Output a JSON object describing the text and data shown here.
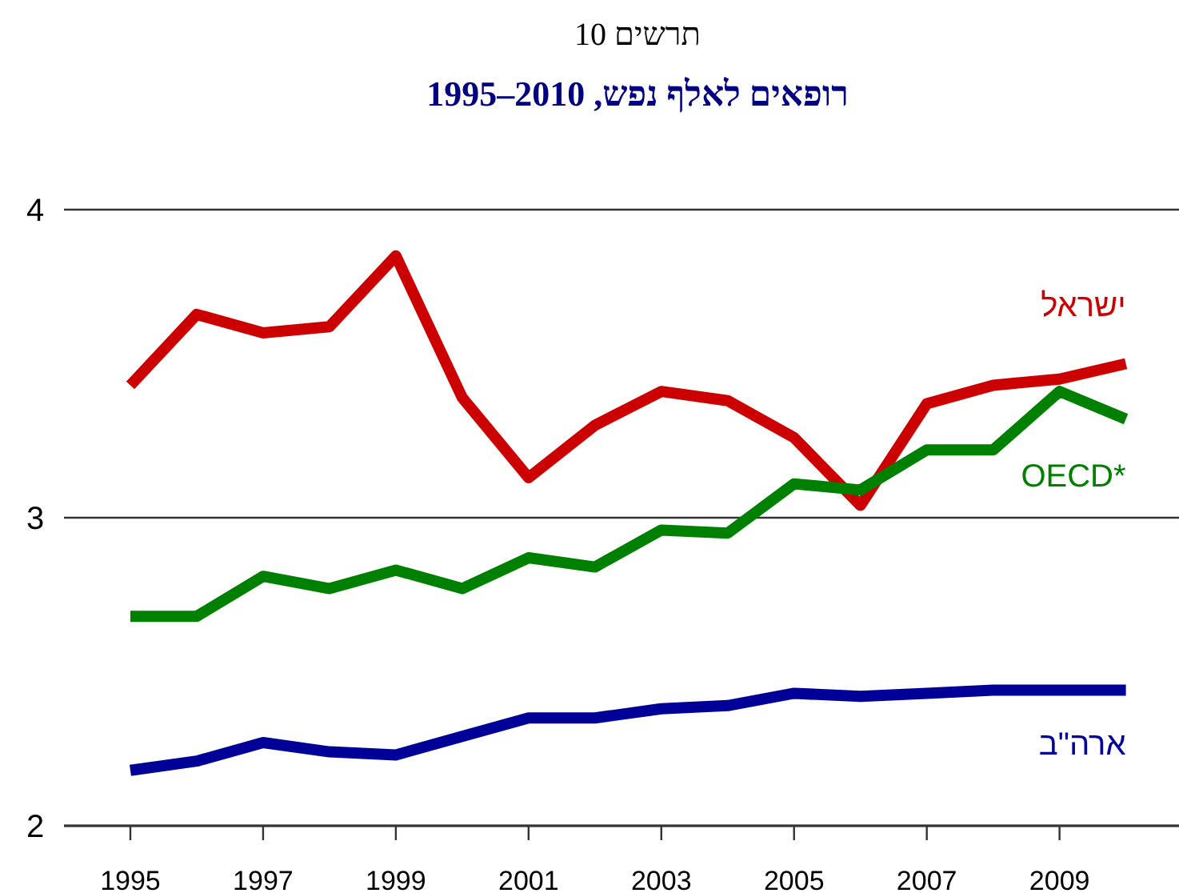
{
  "chart_data": {
    "type": "line",
    "title": "תרשים 10",
    "subtitle": "רופאים לאלף נפש, 2010–1995",
    "x": [
      1995,
      1996,
      1997,
      1998,
      1999,
      2000,
      2001,
      2002,
      2003,
      2004,
      2005,
      2006,
      2007,
      2008,
      2009,
      2010
    ],
    "series": [
      {
        "name": "ישראל",
        "color": "#cc0000",
        "values": [
          3.43,
          3.66,
          3.6,
          3.62,
          3.85,
          3.39,
          3.13,
          3.3,
          3.41,
          3.38,
          3.26,
          3.04,
          3.37,
          3.43,
          3.45,
          3.5
        ]
      },
      {
        "name": "OECD*",
        "color": "#008000",
        "values": [
          2.68,
          2.68,
          2.81,
          2.77,
          2.83,
          2.77,
          2.87,
          2.84,
          2.96,
          2.95,
          3.11,
          3.09,
          3.22,
          3.22,
          3.41,
          3.32
        ]
      },
      {
        "name": "ארה\"ב",
        "color": "#000099",
        "values": [
          2.18,
          2.21,
          2.27,
          2.24,
          2.23,
          2.29,
          2.35,
          2.35,
          2.38,
          2.39,
          2.43,
          2.42,
          2.43,
          2.44,
          2.44,
          2.44
        ]
      }
    ],
    "xlim": [
      1994,
      2010.8
    ],
    "xticks": [
      1995,
      1997,
      1999,
      2001,
      2003,
      2005,
      2007,
      2009
    ],
    "ylim": [
      2,
      4
    ],
    "yticks": [
      2,
      3,
      4
    ],
    "grid": "y",
    "legend": false,
    "marker": "none",
    "line_style": "solid"
  }
}
